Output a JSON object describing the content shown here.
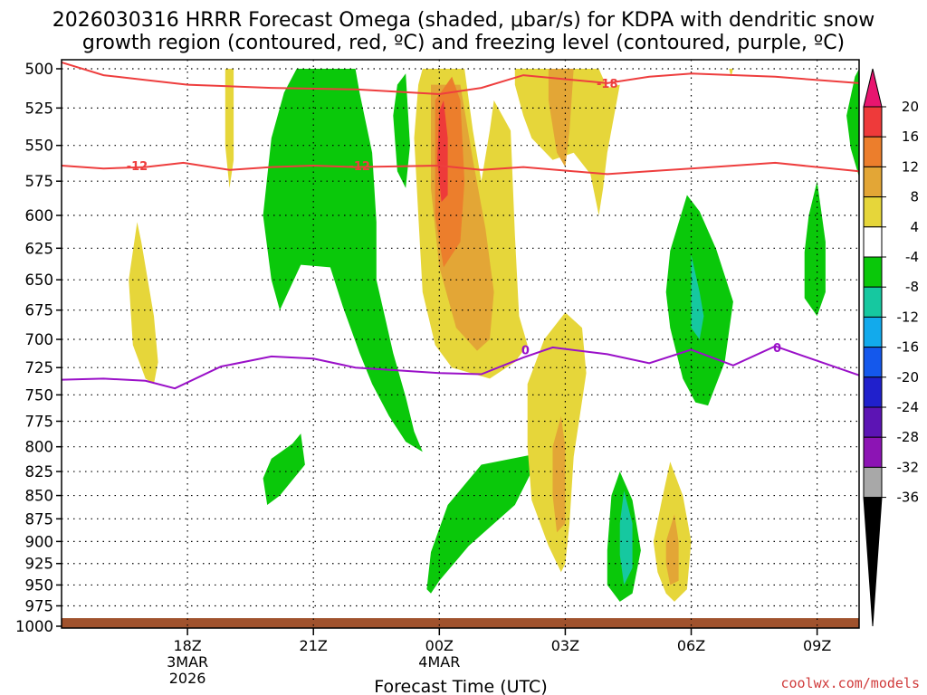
{
  "chart_data": {
    "type": "time-height contour plot",
    "title_line1": "2026030316 HRRR Forecast Omega (shaded, μbar/s) for KDPA with dendritic snow",
    "title_line2": "growth region (contoured, red, ºC) and freezing level (contoured, purple, ºC)",
    "xlabel": "Forecast Time (UTC)",
    "x_ticks": [
      "18Z",
      "21Z",
      "00Z",
      "03Z",
      "06Z",
      "09Z"
    ],
    "x_tick_hours": [
      18,
      21,
      24,
      27,
      30,
      33
    ],
    "x_range_hours": [
      15,
      34
    ],
    "x_date_labels": [
      {
        "hour": 18,
        "lines": [
          "3MAR",
          "2026"
        ]
      },
      {
        "hour": 24,
        "lines": [
          "4MAR"
        ]
      }
    ],
    "y_ticks": [
      500,
      525,
      550,
      575,
      600,
      625,
      650,
      675,
      700,
      725,
      750,
      775,
      800,
      825,
      850,
      875,
      900,
      925,
      950,
      975,
      1000
    ],
    "y_range_hpa": [
      500,
      1000
    ],
    "grid": "dotted",
    "colorbar": {
      "levels": [
        "20",
        "16",
        "12",
        "8",
        "4",
        "-4",
        "-8",
        "-12",
        "-16",
        "-20",
        "-24",
        "-28",
        "-32",
        "-36"
      ],
      "colors": [
        "#e8156f",
        "#ee3a3a",
        "#ec7e2c",
        "#e3a636",
        "#e6d63a",
        "#ffffff",
        "#0ac80a",
        "#16c8a0",
        "#12aaec",
        "#1458ec",
        "#2020cc",
        "#5c14b4",
        "#8c14b4",
        "#a8a8a8",
        "#000000"
      ]
    },
    "dendritic_contour_labels": [
      "-18",
      "-12",
      "-12",
      "-12"
    ],
    "dendritic_temps_c": [
      -12,
      -18
    ],
    "freezing_level_labels": [
      "0",
      "0"
    ],
    "freezing_level_temp_c": 0,
    "freezing_level_hpa": [
      {
        "t": 15.0,
        "p": 736
      },
      {
        "t": 16.0,
        "p": 735
      },
      {
        "t": 17.0,
        "p": 737
      },
      {
        "t": 17.7,
        "p": 744
      },
      {
        "t": 18.8,
        "p": 724
      },
      {
        "t": 20.0,
        "p": 715
      },
      {
        "t": 21.0,
        "p": 717
      },
      {
        "t": 22.0,
        "p": 725
      },
      {
        "t": 24.0,
        "p": 730
      },
      {
        "t": 25.0,
        "p": 731
      },
      {
        "t": 26.0,
        "p": 716
      },
      {
        "t": 26.7,
        "p": 707
      },
      {
        "t": 28.0,
        "p": 713
      },
      {
        "t": 29.0,
        "p": 721
      },
      {
        "t": 30.0,
        "p": 709
      },
      {
        "t": 31.0,
        "p": 723
      },
      {
        "t": 32.0,
        "p": 706
      },
      {
        "t": 34.0,
        "p": 732
      }
    ],
    "dgz_minus12_hpa": [
      {
        "t": 15.0,
        "p": 564
      },
      {
        "t": 16.0,
        "p": 566
      },
      {
        "t": 17.0,
        "p": 565
      },
      {
        "t": 17.9,
        "p": 562
      },
      {
        "t": 19.0,
        "p": 567
      },
      {
        "t": 20.0,
        "p": 565
      },
      {
        "t": 21.0,
        "p": 564
      },
      {
        "t": 22.0,
        "p": 565
      },
      {
        "t": 24.0,
        "p": 564
      },
      {
        "t": 25.0,
        "p": 567
      },
      {
        "t": 26.0,
        "p": 565
      },
      {
        "t": 28.0,
        "p": 570
      },
      {
        "t": 29.0,
        "p": 568
      },
      {
        "t": 30.0,
        "p": 566
      },
      {
        "t": 32.0,
        "p": 562
      },
      {
        "t": 34.0,
        "p": 568
      }
    ],
    "dgz_minus18_hpa": [
      {
        "t": 15.0,
        "p": 496
      },
      {
        "t": 16.0,
        "p": 504
      },
      {
        "t": 17.0,
        "p": 507
      },
      {
        "t": 18.0,
        "p": 510
      },
      {
        "t": 20.0,
        "p": 512
      },
      {
        "t": 22.0,
        "p": 513
      },
      {
        "t": 24.0,
        "p": 516
      },
      {
        "t": 25.0,
        "p": 512
      },
      {
        "t": 26.0,
        "p": 504
      },
      {
        "t": 28.0,
        "p": 509
      },
      {
        "t": 29.0,
        "p": 505
      },
      {
        "t": 30.0,
        "p": 503
      },
      {
        "t": 32.0,
        "p": 505
      },
      {
        "t": 33.0,
        "p": 507
      },
      {
        "t": 34.0,
        "p": 509
      }
    ],
    "omega_regions": [
      {
        "name": "omega-lift-green",
        "value_range": "-8 to -4",
        "color": "#0ac80a",
        "points": [
          [
            22.0,
            500
          ],
          [
            22.1,
            515
          ],
          [
            22.4,
            555
          ],
          [
            22.5,
            605
          ],
          [
            22.5,
            650
          ],
          [
            22.7,
            680
          ],
          [
            22.9,
            712
          ],
          [
            23.2,
            752
          ],
          [
            23.4,
            785
          ],
          [
            23.6,
            805
          ],
          [
            23.2,
            795
          ],
          [
            22.8,
            770
          ],
          [
            22.4,
            740
          ],
          [
            22.1,
            712
          ],
          [
            21.7,
            672
          ],
          [
            21.4,
            640
          ],
          [
            20.7,
            638
          ],
          [
            20.2,
            675
          ],
          [
            20.0,
            650
          ],
          [
            19.8,
            600
          ],
          [
            20.0,
            545
          ],
          [
            20.3,
            515
          ],
          [
            20.6,
            500
          ]
        ]
      },
      {
        "name": "omega-lift-green",
        "value_range": "-8 to -4",
        "color": "#0ac80a",
        "points": [
          [
            23.0,
            510
          ],
          [
            23.2,
            503
          ],
          [
            23.3,
            550
          ],
          [
            23.2,
            580
          ],
          [
            23.0,
            568
          ],
          [
            22.9,
            530
          ]
        ]
      },
      {
        "name": "omega-lift-green",
        "value_range": "-8 to -4",
        "color": "#0ac80a",
        "points": [
          [
            20.0,
            812
          ],
          [
            20.5,
            797
          ],
          [
            20.7,
            787
          ],
          [
            20.8,
            818
          ],
          [
            20.2,
            850
          ],
          [
            19.9,
            860
          ],
          [
            19.8,
            832
          ]
        ]
      },
      {
        "name": "omega-lift-green",
        "value_range": "-8 to -4",
        "color": "#0ac80a",
        "points": [
          [
            23.8,
            912
          ],
          [
            24.2,
            860
          ],
          [
            25.0,
            818
          ],
          [
            26.2,
            808
          ],
          [
            26.2,
            825
          ],
          [
            25.8,
            860
          ],
          [
            24.7,
            905
          ],
          [
            24.0,
            945
          ],
          [
            23.8,
            960
          ],
          [
            23.7,
            955
          ]
        ]
      },
      {
        "name": "omega-lift-green",
        "value_range": "-8 to -4",
        "color": "#0ac80a",
        "points": [
          [
            29.5,
            627
          ],
          [
            29.9,
            585
          ],
          [
            30.2,
            597
          ],
          [
            30.6,
            626
          ],
          [
            31.0,
            668
          ],
          [
            30.8,
            720
          ],
          [
            30.4,
            760
          ],
          [
            30.1,
            757
          ],
          [
            29.8,
            735
          ],
          [
            29.5,
            690
          ],
          [
            29.4,
            660
          ]
        ]
      },
      {
        "name": "omega-lift-green",
        "value_range": "-8 to -4",
        "color": "#0ac80a",
        "points": [
          [
            28.0,
            910
          ],
          [
            28.1,
            850
          ],
          [
            28.3,
            825
          ],
          [
            28.6,
            855
          ],
          [
            28.8,
            910
          ],
          [
            28.6,
            960
          ],
          [
            28.3,
            970
          ],
          [
            28.0,
            950
          ]
        ]
      },
      {
        "name": "omega-lift-green",
        "value_range": "-8 to -4",
        "color": "#0ac80a",
        "points": [
          [
            32.7,
            628
          ],
          [
            32.8,
            600
          ],
          [
            33.0,
            575
          ],
          [
            33.2,
            620
          ],
          [
            33.2,
            660
          ],
          [
            33.0,
            680
          ],
          [
            32.7,
            665
          ]
        ]
      },
      {
        "name": "omega-lift-green",
        "value_range": "-8 to -4",
        "color": "#0ac80a",
        "points": [
          [
            34.0,
            500
          ],
          [
            34.0,
            572
          ],
          [
            33.8,
            552
          ],
          [
            33.7,
            530
          ],
          [
            33.9,
            505
          ]
        ]
      },
      {
        "name": "omega-lift-teal",
        "value_range": "-12 to -8",
        "color": "#16c8a0",
        "points": [
          [
            30.0,
            650
          ],
          [
            30.0,
            630
          ],
          [
            30.2,
            660
          ],
          [
            30.3,
            680
          ],
          [
            30.2,
            700
          ],
          [
            30.0,
            690
          ]
        ]
      },
      {
        "name": "omega-lift-teal",
        "value_range": "-12 to -8",
        "color": "#16c8a0",
        "points": [
          [
            28.3,
            880
          ],
          [
            28.4,
            845
          ],
          [
            28.6,
            880
          ],
          [
            28.6,
            930
          ],
          [
            28.4,
            950
          ],
          [
            28.3,
            915
          ]
        ]
      },
      {
        "name": "omega-sink-yellow",
        "value_range": "4 to 8",
        "color": "#e6d63a",
        "points": [
          [
            23.5,
            510
          ],
          [
            23.6,
            500
          ],
          [
            24.6,
            500
          ],
          [
            24.8,
            540
          ],
          [
            25.0,
            575
          ],
          [
            25.2,
            540
          ],
          [
            25.3,
            520
          ],
          [
            25.7,
            540
          ],
          [
            25.8,
            615
          ],
          [
            25.9,
            680
          ],
          [
            26.1,
            705
          ],
          [
            25.8,
            720
          ],
          [
            25.2,
            735
          ],
          [
            24.3,
            725
          ],
          [
            23.9,
            705
          ],
          [
            23.6,
            660
          ],
          [
            23.5,
            600
          ],
          [
            23.4,
            545
          ]
        ]
      },
      {
        "name": "omega-sink-yellow",
        "value_range": "4 to 8",
        "color": "#e6d63a",
        "points": [
          [
            25.8,
            500
          ],
          [
            27.8,
            500
          ],
          [
            28.0,
            512
          ],
          [
            28.3,
            510
          ],
          [
            28.0,
            555
          ],
          [
            27.9,
            580
          ],
          [
            27.8,
            600
          ],
          [
            27.6,
            570
          ],
          [
            27.2,
            555
          ],
          [
            26.7,
            560
          ],
          [
            26.2,
            545
          ],
          [
            26.0,
            530
          ],
          [
            25.8,
            510
          ]
        ]
      },
      {
        "name": "omega-sink-yellow",
        "value_range": "4 to 8",
        "color": "#e6d63a",
        "points": [
          [
            26.1,
            740
          ],
          [
            26.5,
            700
          ],
          [
            27.0,
            677
          ],
          [
            27.4,
            690
          ],
          [
            27.5,
            730
          ],
          [
            27.2,
            810
          ],
          [
            27.1,
            880
          ],
          [
            27.0,
            925
          ],
          [
            26.9,
            935
          ],
          [
            26.6,
            905
          ],
          [
            26.2,
            855
          ],
          [
            26.1,
            800
          ]
        ]
      },
      {
        "name": "omega-sink-yellow",
        "value_range": "4 to 8",
        "color": "#e6d63a",
        "points": [
          [
            16.6,
            650
          ],
          [
            16.8,
            605
          ],
          [
            16.9,
            620
          ],
          [
            17.2,
            680
          ],
          [
            17.3,
            720
          ],
          [
            17.2,
            740
          ],
          [
            17.0,
            735
          ],
          [
            16.7,
            705
          ]
        ]
      },
      {
        "name": "omega-sink-yellow",
        "value_range": "4 to 8",
        "color": "#e6d63a",
        "points": [
          [
            29.1,
            900
          ],
          [
            29.3,
            855
          ],
          [
            29.5,
            815
          ],
          [
            29.8,
            850
          ],
          [
            30.0,
            900
          ],
          [
            29.9,
            955
          ],
          [
            29.6,
            970
          ],
          [
            29.4,
            960
          ],
          [
            29.2,
            935
          ]
        ]
      },
      {
        "name": "omega-sink-yellow",
        "value_range": "4 to 8",
        "color": "#e6d63a",
        "points": [
          [
            18.9,
            500
          ],
          [
            19.1,
            500
          ],
          [
            19.1,
            560
          ],
          [
            19.0,
            580
          ],
          [
            18.9,
            550
          ]
        ]
      },
      {
        "name": "omega-sink-yellow",
        "value_range": "4 to 8",
        "color": "#e6d63a",
        "points": [
          [
            30.9,
            500
          ],
          [
            31.0,
            500
          ],
          [
            30.95,
            505
          ]
        ]
      },
      {
        "name": "omega-sink-orange-light",
        "value_range": "8 to 12",
        "color": "#e3a636",
        "points": [
          [
            23.8,
            510
          ],
          [
            24.5,
            510
          ],
          [
            24.8,
            560
          ],
          [
            25.1,
            610
          ],
          [
            25.3,
            660
          ],
          [
            25.2,
            700
          ],
          [
            24.9,
            710
          ],
          [
            24.4,
            690
          ],
          [
            24.0,
            640
          ],
          [
            23.8,
            580
          ]
        ]
      },
      {
        "name": "omega-sink-orange-light",
        "value_range": "8 to 12",
        "color": "#e3a636",
        "points": [
          [
            26.6,
            500
          ],
          [
            27.2,
            500
          ],
          [
            27.1,
            540
          ],
          [
            27.0,
            565
          ],
          [
            26.8,
            555
          ],
          [
            26.6,
            520
          ]
        ]
      },
      {
        "name": "omega-sink-orange-light",
        "value_range": "8 to 12",
        "color": "#e3a636",
        "points": [
          [
            26.7,
            800
          ],
          [
            26.9,
            770
          ],
          [
            27.0,
            800
          ],
          [
            27.0,
            880
          ],
          [
            26.8,
            890
          ],
          [
            26.7,
            850
          ]
        ]
      },
      {
        "name": "omega-sink-orange-light",
        "value_range": "8 to 12",
        "color": "#e3a636",
        "points": [
          [
            29.4,
            900
          ],
          [
            29.6,
            870
          ],
          [
            29.7,
            900
          ],
          [
            29.7,
            945
          ],
          [
            29.5,
            950
          ],
          [
            29.4,
            925
          ]
        ]
      },
      {
        "name": "omega-sink-orange",
        "value_range": "12 to 16",
        "color": "#ec7e2c",
        "points": [
          [
            23.9,
            520
          ],
          [
            24.3,
            505
          ],
          [
            24.5,
            520
          ],
          [
            24.6,
            575
          ],
          [
            24.5,
            620
          ],
          [
            24.1,
            640
          ],
          [
            23.9,
            600
          ]
        ]
      },
      {
        "name": "omega-sink-red",
        "value_range": "16 to 20",
        "color": "#ee3a3a",
        "points": [
          [
            24.0,
            527
          ],
          [
            24.1,
            520
          ],
          [
            24.2,
            545
          ],
          [
            24.2,
            585
          ],
          [
            24.05,
            590
          ],
          [
            23.95,
            560
          ]
        ]
      }
    ]
  },
  "credit": "coolwx.com/models"
}
